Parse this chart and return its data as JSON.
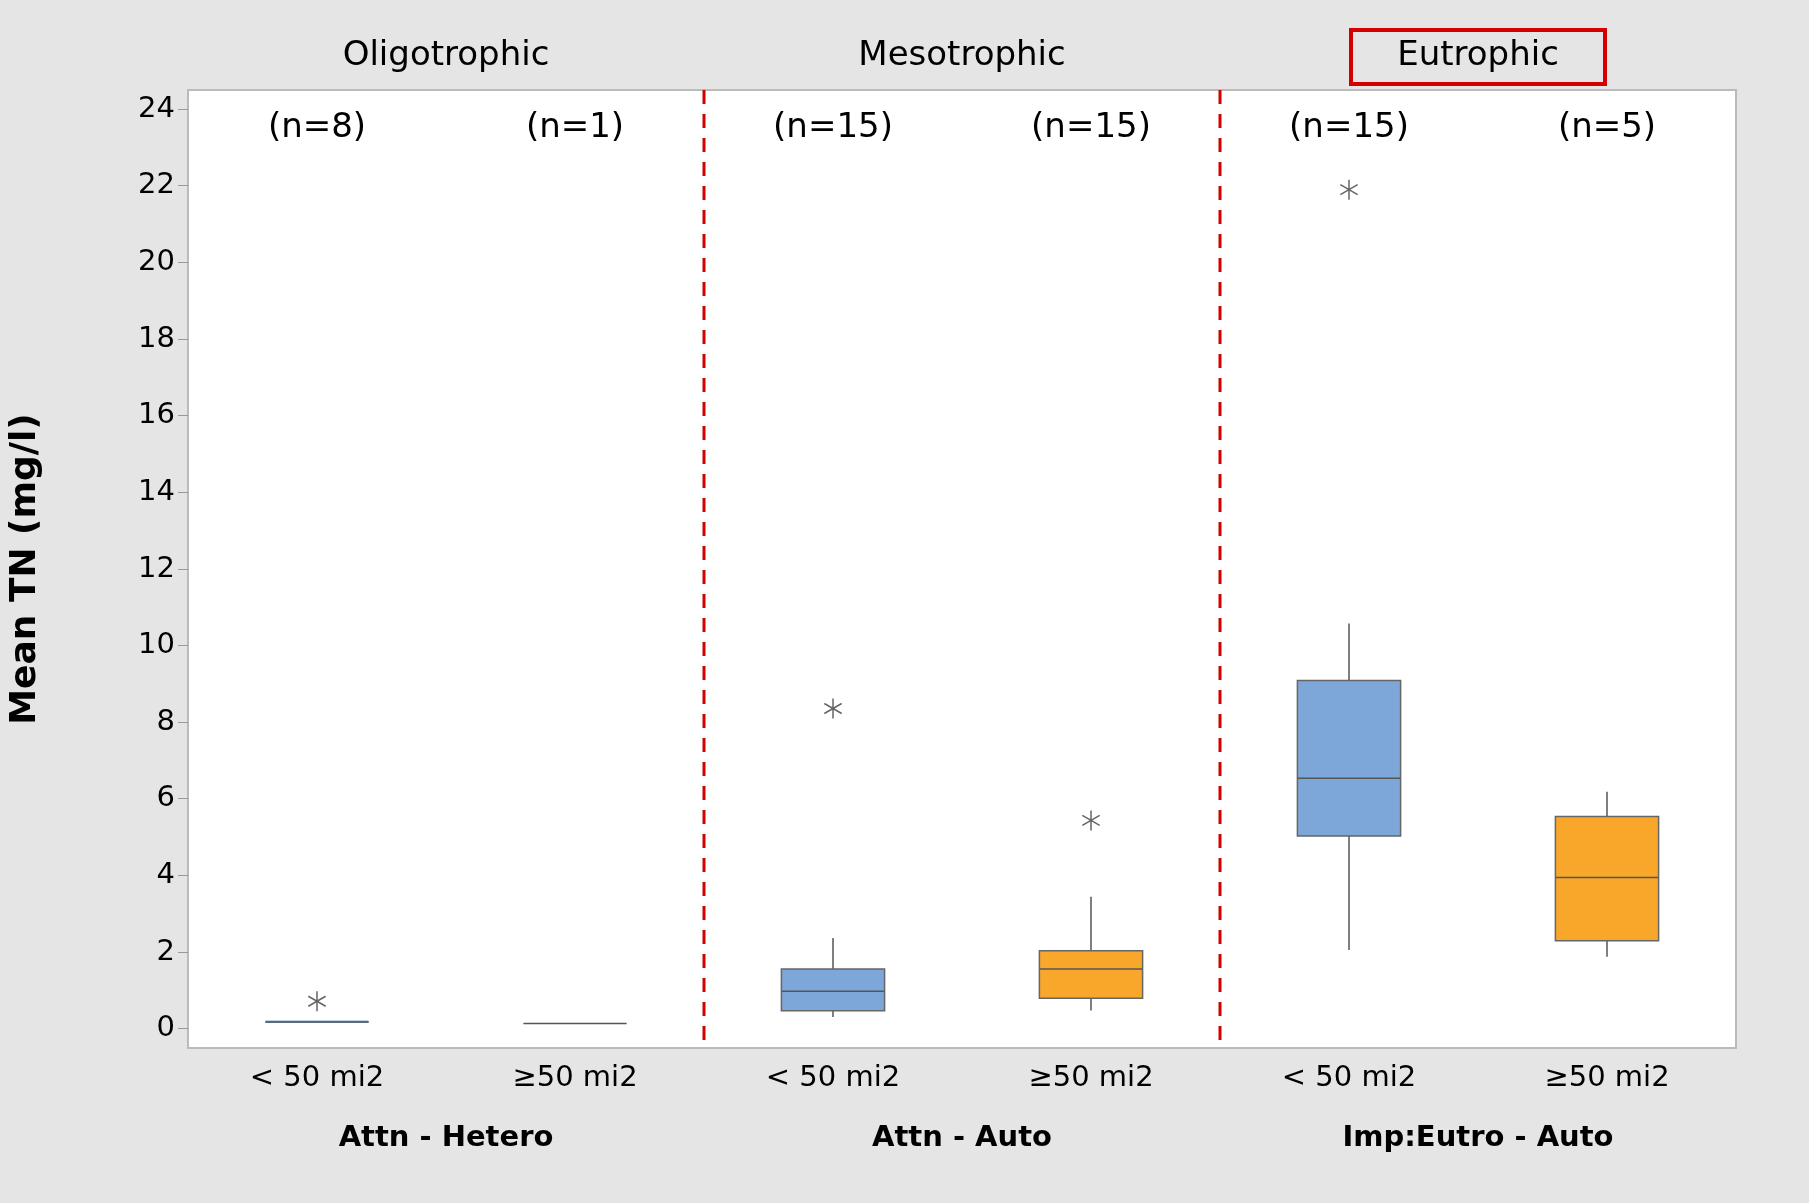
{
  "chart_data": {
    "type": "box",
    "ylabel": "Mean TN (mg/l)",
    "categories": [
      "< 50 mi2",
      "≥50 mi2",
      "< 50 mi2",
      "≥50 mi2",
      "< 50 mi2",
      "≥50 mi2"
    ],
    "colors": [
      "#7da7d9",
      "#555555",
      "#7da7d9",
      "#f8a72a",
      "#7da7d9",
      "#f8a72a"
    ],
    "boxes": [
      {
        "low": 0.15,
        "q1": 0.15,
        "median": 0.18,
        "q3": 0.22,
        "high": 0.22,
        "outliers": [
          0.72
        ]
      },
      {
        "low": 0.14,
        "q1": 0.14,
        "median": 0.14,
        "q3": 0.14,
        "high": 0.14
      },
      {
        "low": 0.31,
        "q1": 0.47,
        "median": 0.98,
        "q3": 1.56,
        "high": 2.37,
        "outliers": [
          8.36
        ]
      },
      {
        "low": 0.48,
        "q1": 0.8,
        "median": 1.56,
        "q3": 2.04,
        "high": 3.45,
        "outliers": [
          5.44
        ]
      },
      {
        "low": 2.06,
        "q1": 5.03,
        "median": 6.54,
        "q3": 9.09,
        "high": 10.58,
        "outliers": [
          21.9
        ]
      },
      {
        "low": 1.88,
        "q1": 2.3,
        "median": 3.95,
        "q3": 5.54,
        "high": 6.19
      }
    ],
    "ylim": [
      -0.5,
      24.5
    ],
    "yticks": [
      0,
      2,
      4,
      6,
      8,
      10,
      12,
      14,
      16,
      18,
      20,
      22,
      24
    ],
    "annotations": [
      "Oligotrophic",
      "Mesotrophic",
      "Eutrophic",
      "(n=8)",
      "(n=1)",
      "(n=15)",
      "(n=15)",
      "(n=15)",
      "(n=5)",
      "Attn - Hetero",
      "Attn - Auto",
      "Imp:Eutro - Auto"
    ],
    "grid": false,
    "legend": false
  }
}
